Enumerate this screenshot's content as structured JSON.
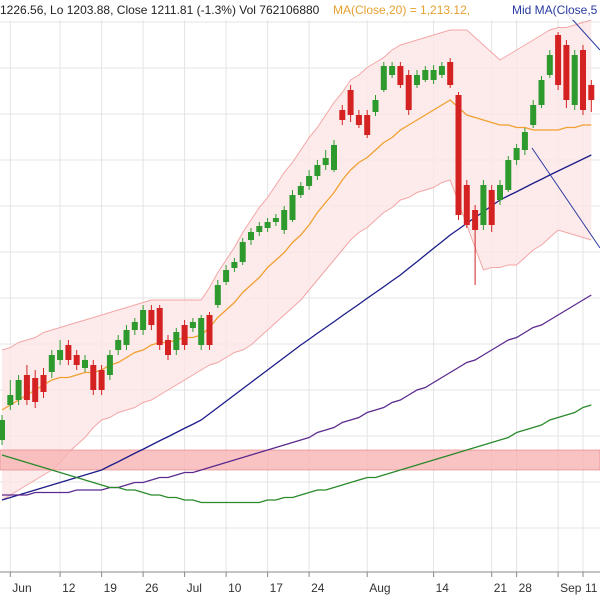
{
  "chart_data": {
    "type": "candlestick",
    "header": {
      "prices": "1226.56, Lo 1203.88, Close 1211.81 (-1.3%) Vol 762106880",
      "ma20": "MA(Close,20) = 1,213.12,",
      "mid": "Mid MA(Close,5"
    },
    "ylim": [
      1026,
      1250
    ],
    "grid": true,
    "up_color": "#2e9a2e",
    "down_color": "#d42222",
    "categories": [
      null,
      "Jun",
      null,
      null,
      null,
      null,
      null,
      "12",
      null,
      null,
      null,
      null,
      "19",
      null,
      null,
      null,
      null,
      "26",
      null,
      null,
      null,
      null,
      "Jul",
      null,
      null,
      null,
      null,
      "10",
      null,
      null,
      null,
      null,
      "17",
      null,
      null,
      null,
      null,
      "24",
      null,
      null,
      null,
      null,
      null,
      null,
      "Aug",
      null,
      null,
      null,
      null,
      null,
      null,
      null,
      "14",
      null,
      null,
      null,
      null,
      null,
      null,
      "21",
      null,
      null,
      "28",
      null,
      null,
      null,
      null,
      "Sep",
      null,
      null,
      "11",
      null
    ],
    "open": [
      1074,
      1088,
      1090,
      1100,
      1098.8,
      1100,
      1101.2,
      1106,
      1112,
      1108,
      1102.8,
      1104,
      1102,
      1100,
      1110,
      1112,
      1118,
      1118,
      1126,
      1126.8,
      1114,
      1110,
      1120,
      1118.8,
      1112,
      1124,
      1128,
      1137.2,
      1142.8,
      1145.2,
      1154,
      1157.2,
      1158.8,
      1161.2,
      1158,
      1162,
      1172,
      1175.6,
      1179.6,
      1184,
      1182,
      1206,
      1214,
      1204,
      1204,
      1205.2,
      1214,
      1220,
      1223.6,
      1220,
      1216,
      1218,
      1218,
      1220,
      1225.2,
      1212,
      1176,
      1166,
      1160,
      1174,
      1170,
      1174,
      1186,
      1190,
      1200,
      1208,
      1220,
      1236,
      1232,
      1208,
      1230,
      1216
    ],
    "high": [
      1084,
      1098,
      1100,
      1104,
      1102,
      1102.8,
      1110,
      1114,
      1114,
      1110,
      1108,
      1106,
      1104,
      1110,
      1116,
      1120,
      1122.8,
      1128,
      1128,
      1128,
      1116,
      1118.8,
      1122,
      1122.8,
      1124,
      1125.2,
      1138,
      1144,
      1146.8,
      1154.8,
      1158.8,
      1161.2,
      1162.8,
      1164.4,
      1167.6,
      1174,
      1177.2,
      1182,
      1186,
      1190,
      1194,
      1208,
      1216,
      1206,
      1206,
      1212,
      1225.2,
      1225.2,
      1225.2,
      1222,
      1222,
      1223.6,
      1224,
      1225.2,
      1226.8,
      1213.2,
      1178,
      1168,
      1178,
      1176,
      1178,
      1187.6,
      1192.4,
      1198.8,
      1210,
      1219.6,
      1230,
      1237.2,
      1234,
      1230,
      1232,
      1218
    ],
    "low": [
      1072,
      1086,
      1088,
      1088,
      1086.8,
      1090.8,
      1098.8,
      1104,
      1104,
      1102,
      1101.2,
      1092,
      1092,
      1098,
      1108,
      1110,
      1116,
      1116,
      1118,
      1110,
      1106,
      1108,
      1110,
      1117.2,
      1110,
      1110,
      1126.8,
      1136,
      1141.2,
      1144,
      1152,
      1155.6,
      1157.2,
      1159.6,
      1156.4,
      1161.2,
      1170.8,
      1174,
      1178,
      1182,
      1181.2,
      1200,
      1201.2,
      1198.8,
      1194.8,
      1203.6,
      1213.2,
      1218.8,
      1214.8,
      1204,
      1214.8,
      1217.2,
      1216.4,
      1218.8,
      1214.8,
      1162,
      1158.8,
      1136,
      1158,
      1157.2,
      1168,
      1173.2,
      1184,
      1188,
      1198.8,
      1206.8,
      1218.8,
      1214,
      1206.8,
      1206,
      1204,
      1205.2
    ],
    "close": [
      1082,
      1092,
      1098,
      1090,
      1089.2,
      1093.2,
      1108,
      1110,
      1106,
      1104,
      1106,
      1094,
      1094,
      1108,
      1114,
      1118,
      1121.2,
      1126,
      1120,
      1112,
      1108,
      1117.2,
      1112,
      1121.2,
      1122.8,
      1112,
      1136,
      1142,
      1145.2,
      1153.2,
      1157.2,
      1159.6,
      1161.2,
      1162.8,
      1166,
      1172,
      1175.6,
      1179.6,
      1184,
      1186.8,
      1192,
      1202,
      1204,
      1200,
      1196,
      1210,
      1223.6,
      1223.6,
      1216,
      1206,
      1220,
      1222,
      1222,
      1223.6,
      1216,
      1164,
      1160,
      1158,
      1176,
      1160,
      1176,
      1186,
      1190.8,
      1197.2,
      1208,
      1218,
      1228,
      1216,
      1210,
      1228,
      1206,
      1210
    ],
    "bands": {
      "color": "#f3a6a6",
      "fill": "#fde6e6",
      "upper": [
        1110,
        1111,
        1113,
        1114,
        1115,
        1117,
        1118,
        1119,
        1120,
        1121,
        1122,
        1123,
        1124,
        1125,
        1126,
        1127,
        1128,
        1129,
        1130,
        1130,
        1130,
        1130,
        1130,
        1130,
        1130,
        1135,
        1141,
        1146,
        1151,
        1157,
        1162,
        1167,
        1171,
        1176,
        1181,
        1185,
        1190,
        1195,
        1199,
        1204,
        1209,
        1213,
        1218,
        1220,
        1223,
        1225,
        1227,
        1230,
        1232,
        1233,
        1234,
        1235,
        1236,
        1237,
        1238,
        1238,
        1238,
        1235,
        1232,
        1229,
        1226,
        1228,
        1230,
        1232,
        1234,
        1236,
        1238,
        1239,
        1239,
        1240,
        1241,
        1242
      ],
      "lower": [
        1050,
        1052,
        1054,
        1056,
        1058,
        1060,
        1062,
        1065,
        1069,
        1072,
        1075,
        1079,
        1082,
        1083,
        1085,
        1086,
        1087,
        1089,
        1090,
        1092,
        1094,
        1096,
        1098,
        1100,
        1102,
        1104,
        1105,
        1107,
        1109,
        1110,
        1112,
        1115,
        1118,
        1121,
        1124,
        1127,
        1130,
        1134,
        1138,
        1142,
        1146,
        1150,
        1154,
        1157,
        1159,
        1162,
        1165,
        1167,
        1170,
        1171,
        1173,
        1174,
        1175,
        1177,
        1178,
        1169,
        1160,
        1151,
        1142,
        1143,
        1143,
        1144,
        1144,
        1147,
        1150,
        1152,
        1155,
        1158,
        1157,
        1156,
        1155,
        1154
      ]
    },
    "series": [
      {
        "color": "#f0a030",
        "values": [
          1086,
          1088,
          1090,
          1092,
          1094,
          1096,
          1098,
          1099,
          1099,
          1100,
          1101,
          1101,
          1102,
          1104,
          1105,
          1107,
          1109,
          1110,
          1112,
          1113,
          1113,
          1114,
          1115,
          1115,
          1116,
          1119,
          1123,
          1126,
          1129,
          1133,
          1136,
          1139,
          1143,
          1146,
          1149,
          1153,
          1156,
          1160,
          1165,
          1169,
          1173,
          1178,
          1182,
          1185,
          1187,
          1190,
          1193,
          1195,
          1198,
          1200,
          1202,
          1204,
          1206,
          1208,
          1210,
          1207,
          1204,
          1203,
          1202,
          1201,
          1200,
          1200,
          1199,
          1199,
          1198,
          1198,
          1198,
          1198,
          1199,
          1199,
          1200,
          1200
        ]
      },
      {
        "color": "#1c1c8a",
        "values": [
          1050,
          1051,
          1052,
          1053,
          1054,
          1055,
          1056,
          1057,
          1058,
          1059,
          1060,
          1061,
          1062,
          1063.7,
          1065.3,
          1067,
          1068.7,
          1070.3,
          1072,
          1073.7,
          1075.3,
          1077,
          1078.7,
          1080.3,
          1082,
          1084.5,
          1087,
          1089.5,
          1092,
          1094.5,
          1097,
          1099.5,
          1102,
          1104.5,
          1107,
          1109.5,
          1112,
          1114.3,
          1116.7,
          1119,
          1121.3,
          1123.7,
          1126,
          1128.3,
          1130.7,
          1133,
          1135.3,
          1137.7,
          1140,
          1142.7,
          1145.3,
          1148,
          1150.7,
          1153.3,
          1156,
          1158.3,
          1160.7,
          1163,
          1165.3,
          1167.7,
          1170,
          1171.7,
          1173.3,
          1175,
          1176.7,
          1178.3,
          1180,
          1181.6,
          1183.2,
          1184.8,
          1186.4,
          1188
        ]
      },
      {
        "color": "#5b2a8e",
        "values": [
          1052,
          1052,
          1052,
          1052,
          1053,
          1053,
          1053,
          1053,
          1053,
          1054,
          1054,
          1054,
          1054,
          1055,
          1055,
          1056,
          1057,
          1057,
          1058,
          1059,
          1059,
          1060,
          1061,
          1061,
          1062,
          1063,
          1064,
          1065,
          1066,
          1067,
          1068,
          1069,
          1070,
          1071,
          1072,
          1073,
          1074,
          1075,
          1077,
          1078,
          1079,
          1081,
          1082,
          1083,
          1085,
          1086,
          1087,
          1089,
          1090,
          1092,
          1094,
          1095,
          1097,
          1099,
          1101,
          1103,
          1105,
          1106,
          1108,
          1110,
          1112,
          1114,
          1115,
          1117,
          1119,
          1120,
          1122,
          1124,
          1126,
          1128,
          1130,
          1132
        ]
      },
      {
        "color": "#2a8a2a",
        "values": [
          1068,
          1067,
          1066,
          1065,
          1064,
          1063,
          1062,
          1061,
          1060,
          1059,
          1058,
          1057,
          1056,
          1055,
          1055,
          1054,
          1054,
          1053,
          1052,
          1052,
          1051,
          1051,
          1050,
          1050,
          1049,
          1049,
          1049,
          1049,
          1049,
          1049,
          1049,
          1049,
          1050,
          1050,
          1051,
          1051,
          1052,
          1053,
          1054,
          1054,
          1055,
          1056,
          1057,
          1058,
          1059,
          1059,
          1060,
          1061,
          1062,
          1063,
          1064,
          1065,
          1066,
          1067,
          1068,
          1069,
          1070,
          1071,
          1072,
          1073,
          1074,
          1075,
          1077,
          1078,
          1079,
          1080,
          1082,
          1083,
          1084,
          1085,
          1087,
          1088
        ]
      }
    ],
    "zone": {
      "low": 1062,
      "high": 1070,
      "color": "#f7b4b4"
    }
  }
}
